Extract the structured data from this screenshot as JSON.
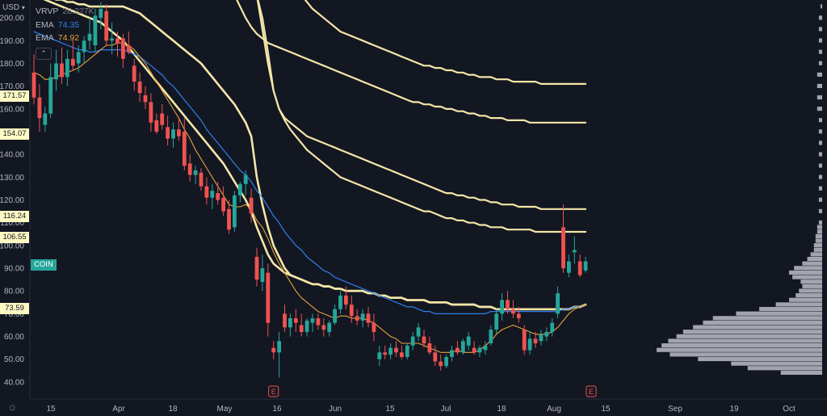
{
  "toolbar": {
    "currency": "USD",
    "currency_caret": "▾",
    "collapse_icon": "⌃",
    "settings_icon": "☼"
  },
  "legend": {
    "vrvp": {
      "name": "VRVP",
      "value": "28.227K",
      "color": "#787b86"
    },
    "ema1": {
      "name": "EMA",
      "value": "74.35",
      "color": "#2f80ed"
    },
    "ema2": {
      "name": "EMA",
      "value": "74.92",
      "color": "#e9a23b"
    }
  },
  "symbol_tag": {
    "label": "COIN",
    "color": "#26a69a"
  },
  "price_tags": [
    "171.57",
    "154.07",
    "116.24",
    "106.55",
    "73.59"
  ],
  "earnings_marker": "E",
  "colors": {
    "background": "#131722",
    "up": "#26a69a",
    "down": "#ef5350",
    "ema_blue": "#2f80ed",
    "ema_orange": "#e9a23b",
    "vwap_bands": "#f4e6a8",
    "volume_profile": "#b2b5be",
    "axis_text": "#b2b5be"
  },
  "chart_data": {
    "type": "candlestick",
    "ylim": [
      35,
      210
    ],
    "yticks": [
      40,
      50,
      60,
      70,
      80,
      90,
      100,
      110,
      120,
      130,
      140,
      150,
      160,
      170,
      180,
      190,
      200
    ],
    "x_tick_labels": [
      "15",
      "Apr",
      "18",
      "May",
      "16",
      "Jun",
      "15",
      "Jul",
      "18",
      "Aug",
      "15",
      "Sep",
      "19",
      "Oct"
    ],
    "candles": [
      {
        "o": 176,
        "h": 184,
        "l": 162,
        "c": 165
      },
      {
        "o": 165,
        "h": 171,
        "l": 150,
        "c": 156
      },
      {
        "o": 153,
        "h": 161,
        "l": 150,
        "c": 158
      },
      {
        "o": 158,
        "h": 180,
        "l": 156,
        "c": 174
      },
      {
        "o": 173,
        "h": 186,
        "l": 168,
        "c": 180
      },
      {
        "o": 180,
        "h": 187,
        "l": 171,
        "c": 174
      },
      {
        "o": 174,
        "h": 186,
        "l": 170,
        "c": 182
      },
      {
        "o": 182,
        "h": 190,
        "l": 177,
        "c": 179
      },
      {
        "o": 180,
        "h": 188,
        "l": 176,
        "c": 185
      },
      {
        "o": 185,
        "h": 192,
        "l": 180,
        "c": 190
      },
      {
        "o": 190,
        "h": 200,
        "l": 186,
        "c": 193
      },
      {
        "o": 188,
        "h": 204,
        "l": 185,
        "c": 201
      },
      {
        "o": 200,
        "h": 207,
        "l": 195,
        "c": 204
      },
      {
        "o": 203,
        "h": 206,
        "l": 188,
        "c": 190
      },
      {
        "o": 190,
        "h": 198,
        "l": 184,
        "c": 191
      },
      {
        "o": 191,
        "h": 194,
        "l": 183,
        "c": 189
      },
      {
        "o": 191,
        "h": 193,
        "l": 178,
        "c": 182
      },
      {
        "o": 188,
        "h": 194,
        "l": 184,
        "c": 185
      },
      {
        "o": 179,
        "h": 182,
        "l": 168,
        "c": 172
      },
      {
        "o": 172,
        "h": 176,
        "l": 163,
        "c": 167
      },
      {
        "o": 166,
        "h": 170,
        "l": 160,
        "c": 163
      },
      {
        "o": 163,
        "h": 167,
        "l": 150,
        "c": 154
      },
      {
        "o": 155,
        "h": 158,
        "l": 149,
        "c": 150
      },
      {
        "o": 158,
        "h": 162,
        "l": 151,
        "c": 153
      },
      {
        "o": 152,
        "h": 157,
        "l": 144,
        "c": 147
      },
      {
        "o": 147,
        "h": 154,
        "l": 143,
        "c": 151
      },
      {
        "o": 151,
        "h": 156,
        "l": 146,
        "c": 148
      },
      {
        "o": 150,
        "h": 156,
        "l": 133,
        "c": 135
      },
      {
        "o": 136,
        "h": 140,
        "l": 128,
        "c": 131
      },
      {
        "o": 131,
        "h": 135,
        "l": 127,
        "c": 133
      },
      {
        "o": 132,
        "h": 134,
        "l": 124,
        "c": 126
      },
      {
        "o": 126,
        "h": 130,
        "l": 118,
        "c": 121
      },
      {
        "o": 121,
        "h": 127,
        "l": 116,
        "c": 124
      },
      {
        "o": 123,
        "h": 128,
        "l": 118,
        "c": 120
      },
      {
        "o": 121,
        "h": 126,
        "l": 113,
        "c": 115
      },
      {
        "o": 116,
        "h": 120,
        "l": 105,
        "c": 107
      },
      {
        "o": 108,
        "h": 124,
        "l": 106,
        "c": 122
      },
      {
        "o": 122,
        "h": 128,
        "l": 119,
        "c": 127
      },
      {
        "o": 127,
        "h": 133,
        "l": 122,
        "c": 131
      },
      {
        "o": 121,
        "h": 125,
        "l": 110,
        "c": 114
      },
      {
        "o": 95,
        "h": 99,
        "l": 82,
        "c": 85
      },
      {
        "o": 84,
        "h": 96,
        "l": 80,
        "c": 90
      },
      {
        "o": 88,
        "h": 92,
        "l": 60,
        "c": 66
      },
      {
        "o": 55,
        "h": 58,
        "l": 50,
        "c": 53
      },
      {
        "o": 53,
        "h": 62,
        "l": 42,
        "c": 58
      },
      {
        "o": 70,
        "h": 74,
        "l": 62,
        "c": 64
      },
      {
        "o": 64,
        "h": 70,
        "l": 60,
        "c": 68
      },
      {
        "o": 68,
        "h": 72,
        "l": 62,
        "c": 66
      },
      {
        "o": 65,
        "h": 70,
        "l": 60,
        "c": 62
      },
      {
        "o": 62,
        "h": 68,
        "l": 60,
        "c": 67
      },
      {
        "o": 66,
        "h": 70,
        "l": 62,
        "c": 68
      },
      {
        "o": 68,
        "h": 70,
        "l": 63,
        "c": 65
      },
      {
        "o": 65,
        "h": 68,
        "l": 60,
        "c": 63
      },
      {
        "o": 62,
        "h": 67,
        "l": 60,
        "c": 66
      },
      {
        "o": 66,
        "h": 74,
        "l": 65,
        "c": 72
      },
      {
        "o": 72,
        "h": 80,
        "l": 70,
        "c": 78
      },
      {
        "o": 78,
        "h": 82,
        "l": 72,
        "c": 74
      },
      {
        "o": 74,
        "h": 78,
        "l": 66,
        "c": 69
      },
      {
        "o": 69,
        "h": 72,
        "l": 65,
        "c": 67
      },
      {
        "o": 67,
        "h": 72,
        "l": 64,
        "c": 70
      },
      {
        "o": 70,
        "h": 73,
        "l": 64,
        "c": 66
      },
      {
        "o": 66,
        "h": 70,
        "l": 58,
        "c": 62
      },
      {
        "o": 50,
        "h": 56,
        "l": 47,
        "c": 53
      },
      {
        "o": 53,
        "h": 56,
        "l": 50,
        "c": 52
      },
      {
        "o": 52,
        "h": 57,
        "l": 50,
        "c": 55
      },
      {
        "o": 55,
        "h": 58,
        "l": 51,
        "c": 53
      },
      {
        "o": 53,
        "h": 56,
        "l": 50,
        "c": 51
      },
      {
        "o": 51,
        "h": 57,
        "l": 50,
        "c": 56
      },
      {
        "o": 56,
        "h": 62,
        "l": 54,
        "c": 60
      },
      {
        "o": 60,
        "h": 66,
        "l": 58,
        "c": 64
      },
      {
        "o": 60,
        "h": 63,
        "l": 55,
        "c": 57
      },
      {
        "o": 57,
        "h": 60,
        "l": 52,
        "c": 53
      },
      {
        "o": 53,
        "h": 56,
        "l": 47,
        "c": 49
      },
      {
        "o": 49,
        "h": 52,
        "l": 45,
        "c": 47
      },
      {
        "o": 47,
        "h": 52,
        "l": 46,
        "c": 51
      },
      {
        "o": 51,
        "h": 56,
        "l": 49,
        "c": 54
      },
      {
        "o": 55,
        "h": 58,
        "l": 52,
        "c": 53
      },
      {
        "o": 53,
        "h": 59,
        "l": 52,
        "c": 58
      },
      {
        "o": 56,
        "h": 62,
        "l": 54,
        "c": 60
      },
      {
        "o": 55,
        "h": 58,
        "l": 52,
        "c": 53
      },
      {
        "o": 53,
        "h": 56,
        "l": 51,
        "c": 55
      },
      {
        "o": 54,
        "h": 58,
        "l": 52,
        "c": 56
      },
      {
        "o": 57,
        "h": 65,
        "l": 56,
        "c": 63
      },
      {
        "o": 63,
        "h": 72,
        "l": 61,
        "c": 70
      },
      {
        "o": 70,
        "h": 79,
        "l": 67,
        "c": 76
      },
      {
        "o": 76,
        "h": 80,
        "l": 70,
        "c": 72
      },
      {
        "o": 72,
        "h": 76,
        "l": 68,
        "c": 70
      },
      {
        "o": 70,
        "h": 73,
        "l": 66,
        "c": 68
      },
      {
        "o": 63,
        "h": 65,
        "l": 52,
        "c": 54
      },
      {
        "o": 54,
        "h": 62,
        "l": 52,
        "c": 59
      },
      {
        "o": 59,
        "h": 62,
        "l": 55,
        "c": 57
      },
      {
        "o": 58,
        "h": 63,
        "l": 56,
        "c": 61
      },
      {
        "o": 60,
        "h": 64,
        "l": 58,
        "c": 62
      },
      {
        "o": 62,
        "h": 68,
        "l": 60,
        "c": 66
      },
      {
        "o": 70,
        "h": 82,
        "l": 68,
        "c": 79
      },
      {
        "o": 108,
        "h": 118,
        "l": 88,
        "c": 90
      },
      {
        "o": 88,
        "h": 96,
        "l": 86,
        "c": 93
      },
      {
        "o": 97,
        "h": 104,
        "l": 92,
        "c": 98
      },
      {
        "o": 93,
        "h": 96,
        "l": 86,
        "c": 87
      },
      {
        "o": 89,
        "h": 95,
        "l": 88,
        "c": 93
      }
    ],
    "ema_fast": [
      176,
      175,
      173,
      173,
      174,
      175,
      176,
      177,
      178,
      180,
      182,
      184,
      186,
      188,
      188,
      189,
      189,
      188,
      186,
      183,
      180,
      176,
      172,
      168,
      164,
      160,
      156,
      151,
      147,
      142,
      138,
      134,
      130,
      126,
      122,
      118,
      117,
      117,
      118,
      116,
      111,
      108,
      103,
      97,
      92,
      88,
      84,
      80,
      77,
      75,
      73,
      71,
      70,
      69,
      68,
      69,
      69,
      68,
      68,
      68,
      67,
      66,
      64,
      62,
      60,
      59,
      57,
      57,
      57,
      57,
      56,
      55,
      54,
      53,
      53,
      53,
      54,
      53,
      53,
      53,
      54,
      56,
      58,
      61,
      63,
      64,
      65,
      64,
      63,
      62,
      61,
      61,
      61,
      62,
      64,
      67,
      70,
      72,
      73,
      74
    ],
    "ema_slow": [
      194,
      193,
      192,
      191,
      190,
      189,
      188,
      187,
      186,
      186,
      185,
      185,
      186,
      186,
      186,
      186,
      186,
      185,
      184,
      183,
      181,
      179,
      177,
      175,
      172,
      170,
      167,
      164,
      161,
      158,
      155,
      151,
      148,
      145,
      142,
      139,
      136,
      133,
      131,
      128,
      124,
      121,
      117,
      113,
      110,
      106,
      103,
      100,
      98,
      95,
      93,
      91,
      89,
      88,
      86,
      85,
      84,
      83,
      82,
      81,
      80,
      79,
      78,
      77,
      76,
      75,
      74,
      73,
      73,
      72,
      71,
      71,
      70,
      70,
      70,
      70,
      70,
      70,
      70,
      70,
      70,
      70,
      71,
      71,
      71,
      71,
      71,
      71,
      71,
      71,
      71,
      71,
      71,
      71,
      71,
      72,
      72,
      73,
      73,
      74
    ],
    "vwap_bands": [
      [
        210,
        210,
        209,
        209,
        208,
        208,
        207,
        207,
        206,
        206,
        205,
        205,
        205,
        205,
        205,
        205,
        205,
        204,
        203,
        202,
        200,
        198,
        196,
        194,
        192,
        190,
        188,
        186,
        184,
        182,
        180,
        177,
        174,
        171,
        168,
        165,
        162,
        158,
        154,
        148,
        130,
        118,
        108,
        100,
        95,
        90,
        87,
        86,
        85,
        84,
        83,
        83,
        82,
        82,
        81,
        81,
        80,
        80,
        80,
        80,
        79,
        79,
        78,
        78,
        77,
        77,
        77,
        76,
        76,
        76,
        76,
        75,
        75,
        75,
        75,
        74,
        74,
        74,
        74,
        74,
        73,
        73,
        73,
        72,
        72,
        72,
        72,
        72,
        72,
        72,
        72,
        72,
        72,
        72,
        72,
        72,
        72,
        73,
        73,
        74
      ],
      [
        210,
        209,
        208,
        207,
        206,
        205,
        204,
        203,
        202,
        201,
        200,
        199,
        198,
        196,
        194,
        192,
        190,
        187,
        184,
        181,
        178,
        175,
        172,
        169,
        166,
        163,
        160,
        157,
        154,
        151,
        148,
        145,
        142,
        139,
        136,
        132,
        128,
        124,
        120,
        115,
        108,
        102,
        96,
        92,
        90,
        88,
        87,
        86,
        85,
        84,
        83,
        83,
        82,
        82,
        81,
        81,
        80,
        80,
        80,
        80,
        79,
        79,
        78,
        78,
        77,
        77,
        77,
        76,
        76,
        76,
        76,
        75,
        75,
        75,
        75,
        74,
        74,
        74,
        74,
        74,
        73,
        73,
        73,
        72,
        72,
        72,
        72,
        72,
        72,
        72,
        72,
        72,
        72,
        72,
        72,
        72,
        72,
        73,
        73,
        74
      ]
    ],
    "bands_upper": [
      {
        "start": 40,
        "values": [
          210,
          200,
          185,
          168,
          160,
          156,
          154,
          152,
          150,
          148,
          147,
          146,
          145,
          144,
          143,
          142,
          141,
          140,
          139,
          138,
          137,
          136,
          135,
          134,
          133,
          132,
          131,
          130,
          129,
          128,
          127,
          126,
          125,
          124,
          123,
          123,
          122,
          122,
          121,
          121,
          120,
          120,
          119,
          119,
          118,
          118,
          118,
          117,
          117,
          117,
          117,
          116,
          116,
          116,
          116,
          116,
          116,
          116,
          116,
          116
        ]
      },
      {
        "start": 40,
        "values": [
          210,
          195,
          180,
          168,
          160,
          155,
          151,
          148,
          145,
          142,
          140,
          138,
          136,
          134,
          132,
          130,
          129,
          128,
          127,
          126,
          125,
          124,
          123,
          122,
          121,
          120,
          119,
          118,
          117,
          116,
          115,
          115,
          114,
          113,
          112,
          112,
          111,
          111,
          110,
          110,
          109,
          109,
          108,
          108,
          108,
          107,
          107,
          107,
          107,
          107,
          106,
          106,
          106,
          106,
          106,
          106,
          106,
          106,
          106,
          106
        ]
      },
      {
        "start": 36,
        "values": [
          210,
          205,
          200,
          196,
          193,
          191,
          189,
          188,
          187,
          186,
          185,
          184,
          183,
          182,
          181,
          180,
          179,
          178,
          177,
          176,
          175,
          174,
          173,
          172,
          171,
          170,
          169,
          168,
          167,
          166,
          165,
          164,
          163,
          163,
          162,
          162,
          161,
          161,
          160,
          160,
          159,
          159,
          158,
          158,
          157,
          157,
          156,
          156,
          156,
          155,
          155,
          155,
          155,
          154,
          154,
          154,
          154,
          154,
          154,
          154,
          154,
          154,
          154,
          154
        ]
      },
      {
        "start": 48,
        "values": [
          210,
          207,
          204,
          202,
          200,
          198,
          196,
          194,
          193,
          192,
          191,
          190,
          189,
          188,
          187,
          186,
          185,
          184,
          183,
          182,
          181,
          180,
          179,
          179,
          178,
          178,
          177,
          177,
          176,
          176,
          175,
          175,
          174,
          174,
          174,
          173,
          173,
          173,
          172,
          172,
          172,
          172,
          172,
          171,
          171,
          171,
          171,
          171,
          171,
          171,
          171,
          171
        ]
      }
    ],
    "earnings_positions": [
      43,
      100
    ],
    "volume_profile": {
      "price_levels": [
        44,
        46,
        48,
        50,
        52,
        54,
        56,
        58,
        60,
        62,
        64,
        66,
        68,
        70,
        72,
        74,
        76,
        78,
        80,
        82,
        84,
        86,
        88,
        90,
        92,
        94,
        96,
        98,
        100,
        102,
        104,
        106,
        108,
        110,
        115,
        120,
        125,
        130,
        135,
        140,
        145,
        150,
        155,
        160,
        165,
        170,
        175,
        180,
        185,
        190,
        195,
        200,
        205
      ],
      "values": [
        0.25,
        0.45,
        0.55,
        0.75,
        0.92,
        1.0,
        0.97,
        0.93,
        0.88,
        0.84,
        0.78,
        0.72,
        0.66,
        0.52,
        0.38,
        0.28,
        0.2,
        0.16,
        0.14,
        0.12,
        0.13,
        0.18,
        0.2,
        0.17,
        0.12,
        0.09,
        0.07,
        0.05,
        0.05,
        0.04,
        0.04,
        0.03,
        0.03,
        0.02,
        0.02,
        0.02,
        0.02,
        0.02,
        0.02,
        0.02,
        0.02,
        0.02,
        0.02,
        0.03,
        0.03,
        0.03,
        0.03,
        0.02,
        0.02,
        0.02,
        0.02,
        0.02,
        0.01
      ]
    }
  }
}
